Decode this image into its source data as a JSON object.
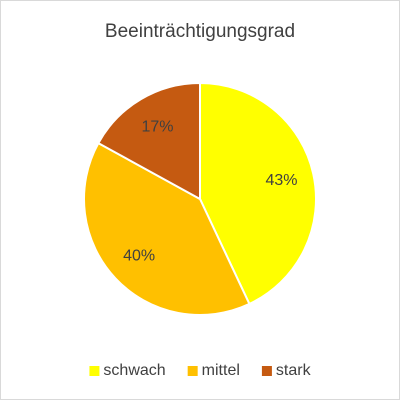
{
  "chart_data": {
    "type": "pie",
    "title": "Beeinträchtigungsgrad",
    "categories": [
      "schwach",
      "mittel",
      "stark"
    ],
    "values": [
      43,
      40,
      17
    ],
    "value_labels": [
      "43%",
      "40%",
      "17%"
    ],
    "colors": [
      "#ffff00",
      "#ffc000",
      "#c55a11"
    ],
    "legend": "bottom"
  }
}
